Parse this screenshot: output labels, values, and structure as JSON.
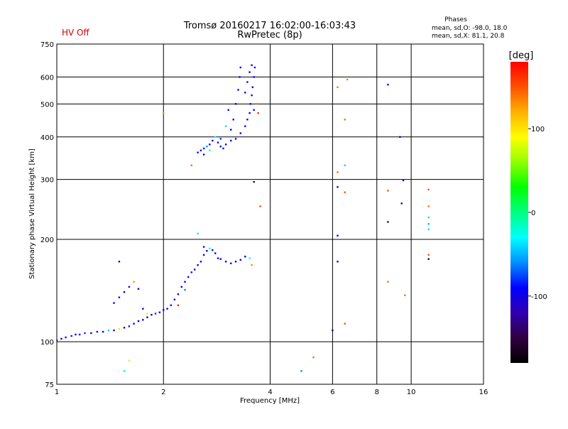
{
  "chart_data": {
    "type": "scatter",
    "title": "Tromsø 20160217 16:02:00-16:03:43",
    "subtitle": "RwPretec (8p)",
    "status": "HV Off",
    "stats": {
      "heading": "Phases",
      "line1": "mean, sd,O: -98.0, 18.0",
      "line2": "mean, sd,X:  81.1, 20.8"
    },
    "xlabel": "Frequency [MHz]",
    "ylabel": "Stationary phase Virtual Height [km]",
    "x_scale": "log",
    "y_scale": "log",
    "xlim": [
      1,
      16
    ],
    "ylim": [
      75,
      750
    ],
    "grid": true,
    "x_ticks": [
      1,
      2,
      4,
      6,
      8,
      10,
      16
    ],
    "y_ticks": [
      75,
      100,
      200,
      300,
      400,
      500,
      600,
      750
    ],
    "colorbar": {
      "label": "[deg]",
      "range": [
        -180,
        180
      ],
      "ticks": [
        100,
        0,
        -100
      ],
      "stops": [
        "#000000",
        "#300040",
        "#3000b0",
        "#0000ff",
        "#0090ff",
        "#00ffff",
        "#00ff80",
        "#00ff00",
        "#90ff00",
        "#ffff00",
        "#ffb000",
        "#ff5000",
        "#ff0000"
      ]
    },
    "series": [
      {
        "points": [
          [
            1.0,
            101,
            -95
          ],
          [
            1.03,
            102,
            -90
          ],
          [
            1.06,
            103,
            -100
          ],
          [
            1.1,
            104,
            -85
          ],
          [
            1.13,
            105,
            -100
          ],
          [
            1.16,
            105,
            -95
          ],
          [
            1.2,
            106,
            -80
          ],
          [
            1.25,
            106,
            -100
          ],
          [
            1.3,
            107,
            -90
          ],
          [
            1.35,
            107,
            -95
          ],
          [
            1.4,
            108,
            -40
          ],
          [
            1.45,
            108,
            -100
          ],
          [
            1.5,
            109,
            100
          ],
          [
            1.55,
            110,
            -90
          ],
          [
            1.6,
            111,
            -85
          ],
          [
            1.65,
            113,
            -100
          ],
          [
            1.7,
            115,
            -90
          ],
          [
            1.75,
            116,
            -95
          ],
          [
            1.8,
            118,
            -100
          ],
          [
            1.85,
            120,
            -90
          ],
          [
            1.9,
            121,
            -80
          ],
          [
            1.95,
            122,
            -100
          ],
          [
            2.0,
            124,
            -90
          ],
          [
            2.05,
            125,
            -95
          ],
          [
            2.1,
            128,
            -100
          ],
          [
            2.15,
            133,
            -90
          ],
          [
            2.2,
            138,
            -95
          ],
          [
            2.25,
            145,
            -100
          ],
          [
            2.3,
            150,
            -90
          ],
          [
            2.35,
            155,
            -100
          ],
          [
            2.4,
            160,
            -85
          ],
          [
            2.45,
            163,
            -95
          ],
          [
            2.5,
            168,
            -100
          ],
          [
            2.55,
            172,
            -90
          ],
          [
            2.6,
            180,
            -95
          ],
          [
            2.65,
            185,
            -100
          ],
          [
            2.7,
            188,
            -20
          ],
          [
            2.75,
            186,
            -95
          ],
          [
            2.8,
            182,
            -100
          ],
          [
            2.85,
            176,
            -90
          ],
          [
            2.9,
            175,
            -100
          ],
          [
            3.0,
            172,
            -95
          ],
          [
            3.1,
            170,
            -90
          ],
          [
            3.2,
            172,
            -100
          ],
          [
            3.3,
            174,
            -95
          ],
          [
            3.4,
            178,
            -90
          ],
          [
            3.5,
            176,
            -30
          ],
          [
            3.55,
            168,
            130
          ],
          [
            1.45,
            130,
            -100
          ],
          [
            1.5,
            135,
            -110
          ],
          [
            1.55,
            140,
            -95
          ],
          [
            1.6,
            145,
            -120
          ],
          [
            1.65,
            150,
            130
          ],
          [
            1.7,
            143,
            -90
          ],
          [
            1.5,
            172,
            -100
          ],
          [
            1.75,
            125,
            -95
          ],
          [
            1.8,
            121,
            80
          ],
          [
            2.2,
            128,
            170
          ],
          [
            2.3,
            142,
            -60
          ]
        ]
      },
      {
        "points": [
          [
            2.5,
            360,
            -95
          ],
          [
            2.55,
            365,
            -100
          ],
          [
            2.6,
            370,
            -90
          ],
          [
            2.65,
            375,
            -60
          ],
          [
            2.7,
            380,
            -95
          ],
          [
            2.75,
            390,
            -100
          ],
          [
            2.8,
            400,
            -30
          ],
          [
            2.85,
            385,
            -90
          ],
          [
            2.9,
            375,
            -100
          ],
          [
            2.95,
            370,
            -95
          ],
          [
            3.0,
            380,
            -100
          ],
          [
            3.1,
            390,
            -90
          ],
          [
            3.2,
            395,
            -100
          ],
          [
            3.3,
            410,
            -95
          ],
          [
            3.4,
            430,
            -90
          ],
          [
            3.45,
            450,
            -100
          ],
          [
            3.5,
            470,
            -95
          ],
          [
            3.52,
            500,
            -90
          ],
          [
            3.55,
            530,
            -100
          ],
          [
            3.57,
            560,
            -95
          ],
          [
            3.6,
            600,
            -100
          ],
          [
            3.62,
            640,
            -95
          ],
          [
            3.1,
            420,
            -90
          ],
          [
            3.15,
            450,
            -100
          ],
          [
            3.2,
            500,
            -95
          ],
          [
            3.25,
            550,
            -90
          ],
          [
            3.28,
            600,
            -100
          ],
          [
            3.3,
            640,
            -95
          ],
          [
            3.0,
            430,
            -40
          ],
          [
            3.05,
            480,
            -100
          ],
          [
            3.4,
            540,
            -95
          ],
          [
            3.45,
            580,
            -110
          ],
          [
            3.5,
            620,
            -90
          ],
          [
            3.55,
            650,
            -100
          ],
          [
            3.6,
            480,
            -95
          ],
          [
            3.65,
            500,
            140
          ],
          [
            3.7,
            470,
            160
          ],
          [
            2.6,
            355,
            -100
          ],
          [
            2.7,
            365,
            -20
          ],
          [
            2.9,
            395,
            -80
          ]
        ]
      },
      {
        "points": [
          [
            2.0,
            470,
            130
          ],
          [
            2.4,
            330,
            140
          ],
          [
            3.6,
            295,
            -150
          ],
          [
            3.75,
            250,
            150
          ],
          [
            2.5,
            208,
            -10
          ],
          [
            2.6,
            190,
            -90
          ],
          [
            1.6,
            88,
            100
          ],
          [
            1.55,
            82,
            -20
          ],
          [
            4.9,
            82,
            -60
          ],
          [
            5.3,
            90,
            140
          ],
          [
            6.2,
            560,
            140
          ],
          [
            6.6,
            590,
            140
          ],
          [
            6.5,
            450,
            140
          ],
          [
            6.2,
            315,
            140
          ],
          [
            6.5,
            330,
            -40
          ],
          [
            6.2,
            285,
            -100
          ],
          [
            6.5,
            275,
            150
          ],
          [
            6.2,
            205,
            -100
          ],
          [
            6.2,
            172,
            -100
          ],
          [
            6.5,
            113,
            150
          ],
          [
            6.0,
            108,
            -140
          ],
          [
            8.6,
            570,
            -100
          ],
          [
            9.3,
            400,
            -100
          ],
          [
            9.5,
            298,
            -100
          ],
          [
            8.6,
            278,
            150
          ],
          [
            9.4,
            255,
            -100
          ],
          [
            8.6,
            225,
            -150
          ],
          [
            8.6,
            150,
            140
          ],
          [
            9.6,
            137,
            140
          ],
          [
            11.2,
            280,
            150
          ],
          [
            11.2,
            250,
            140
          ],
          [
            11.2,
            232,
            -40
          ],
          [
            11.2,
            222,
            -50
          ],
          [
            11.2,
            214,
            -40
          ],
          [
            11.2,
            180,
            150
          ],
          [
            11.2,
            175,
            -150
          ]
        ]
      }
    ]
  }
}
